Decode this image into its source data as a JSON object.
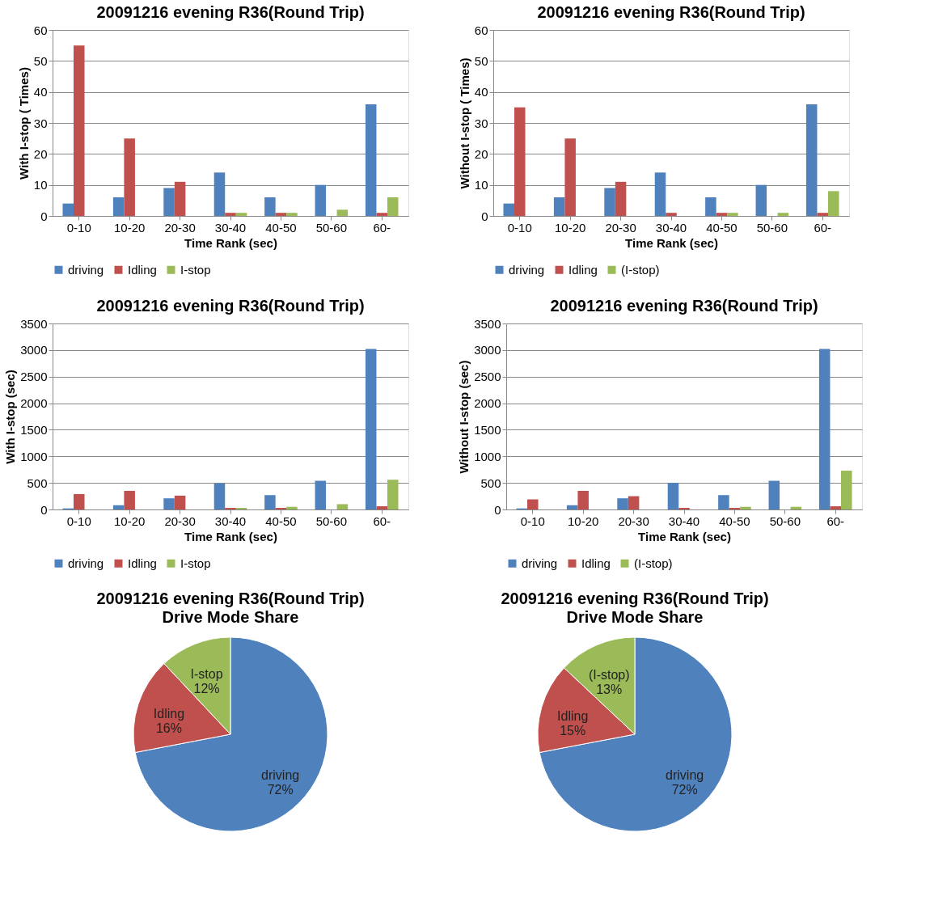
{
  "chart_data": [
    {
      "type": "bar",
      "title": "20091216 evening R36(Round Trip)",
      "xlabel": "Time Rank (sec)",
      "ylabel": "With I-stop ( Times)",
      "categories": [
        "0-10",
        "10-20",
        "20-30",
        "30-40",
        "40-50",
        "50-60",
        "60-"
      ],
      "ylim": [
        0,
        60
      ],
      "yticks": [
        0,
        10,
        20,
        30,
        40,
        50,
        60
      ],
      "grid": "y",
      "legend": "bottom",
      "series": [
        {
          "name": "driving",
          "color": "#4f81bd",
          "values": [
            4,
            6,
            9,
            14,
            6,
            10,
            36
          ]
        },
        {
          "name": "Idling",
          "color": "#c0504d",
          "values": [
            55,
            25,
            11,
            1,
            1,
            0,
            1
          ]
        },
        {
          "name": "I-stop",
          "color": "#9bbb59",
          "values": [
            0,
            0,
            0,
            1,
            1,
            2,
            6
          ]
        }
      ]
    },
    {
      "type": "bar",
      "title": "20091216 evening R36(Round Trip)",
      "xlabel": "Time Rank (sec)",
      "ylabel": "Without I-stop ( Times)",
      "categories": [
        "0-10",
        "10-20",
        "20-30",
        "30-40",
        "40-50",
        "50-60",
        "60-"
      ],
      "ylim": [
        0,
        60
      ],
      "yticks": [
        0,
        10,
        20,
        30,
        40,
        50,
        60
      ],
      "grid": "y",
      "legend": "bottom",
      "series": [
        {
          "name": "driving",
          "color": "#4f81bd",
          "values": [
            4,
            6,
            9,
            14,
            6,
            10,
            36
          ]
        },
        {
          "name": "Idling",
          "color": "#c0504d",
          "values": [
            35,
            25,
            11,
            1,
            1,
            0,
            1
          ]
        },
        {
          "name": "(I-stop)",
          "color": "#9bbb59",
          "values": [
            0,
            0,
            0,
            0,
            1,
            1,
            8
          ]
        }
      ]
    },
    {
      "type": "bar",
      "title": "20091216 evening R36(Round Trip)",
      "xlabel": "Time Rank (sec)",
      "ylabel": "With I-stop (sec)",
      "categories": [
        "0-10",
        "10-20",
        "20-30",
        "30-40",
        "40-50",
        "50-60",
        "60-"
      ],
      "ylim": [
        0,
        3500
      ],
      "yticks": [
        0,
        500,
        1000,
        1500,
        2000,
        2500,
        3000,
        3500
      ],
      "grid": "y",
      "legend": "bottom",
      "series": [
        {
          "name": "driving",
          "color": "#4f81bd",
          "values": [
            20,
            80,
            210,
            490,
            270,
            540,
            3020
          ]
        },
        {
          "name": "Idling",
          "color": "#c0504d",
          "values": [
            290,
            350,
            260,
            30,
            30,
            0,
            60
          ]
        },
        {
          "name": "I-stop",
          "color": "#9bbb59",
          "values": [
            0,
            0,
            0,
            30,
            50,
            100,
            560
          ]
        }
      ]
    },
    {
      "type": "bar",
      "title": "20091216 evening R36(Round Trip)",
      "xlabel": "Time Rank (sec)",
      "ylabel": "Without I-stop (sec)",
      "categories": [
        "0-10",
        "10-20",
        "20-30",
        "30-40",
        "40-50",
        "50-60",
        "60-"
      ],
      "ylim": [
        0,
        3500
      ],
      "yticks": [
        0,
        500,
        1000,
        1500,
        2000,
        2500,
        3000,
        3500
      ],
      "grid": "y",
      "legend": "bottom",
      "series": [
        {
          "name": "driving",
          "color": "#4f81bd",
          "values": [
            20,
            80,
            210,
            500,
            270,
            540,
            3020
          ]
        },
        {
          "name": "Idling",
          "color": "#c0504d",
          "values": [
            190,
            350,
            250,
            30,
            30,
            0,
            60
          ]
        },
        {
          "name": "(I-stop)",
          "color": "#9bbb59",
          "values": [
            0,
            0,
            0,
            0,
            50,
            50,
            730
          ]
        }
      ]
    },
    {
      "type": "pie",
      "title": "20091216 evening R36(Round Trip)",
      "subtitle": "Drive Mode Share",
      "categories": [
        "driving",
        "Idling",
        "I-stop"
      ],
      "values": [
        72,
        16,
        12
      ],
      "value_labels": [
        "72%",
        "16%",
        "12%"
      ],
      "colors": [
        "#4f81bd",
        "#c0504d",
        "#9bbb59"
      ]
    },
    {
      "type": "pie",
      "title": "20091216 evening R36(Round Trip)",
      "subtitle": "Drive Mode Share",
      "categories": [
        "driving",
        "Idling",
        "(I-stop)"
      ],
      "values": [
        72,
        15,
        13
      ],
      "value_labels": [
        "72%",
        "15%",
        "13%"
      ],
      "colors": [
        "#4f81bd",
        "#c0504d",
        "#9bbb59"
      ]
    }
  ]
}
